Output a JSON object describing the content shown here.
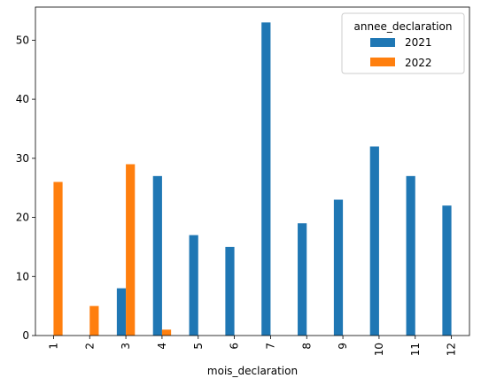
{
  "chart_data": {
    "type": "bar",
    "xlabel": "mois_declaration",
    "ylabel": "",
    "ylim": [
      0,
      55.6
    ],
    "yticks": [
      0,
      10,
      20,
      30,
      40,
      50
    ],
    "categories": [
      "1",
      "2",
      "3",
      "4",
      "5",
      "6",
      "7",
      "8",
      "9",
      "10",
      "11",
      "12"
    ],
    "legend": {
      "title": "annee_declaration",
      "placement": "top-right"
    },
    "series": [
      {
        "name": "2021",
        "color": "#1f77b4",
        "values": [
          0,
          0,
          8,
          27,
          17,
          15,
          53,
          19,
          23,
          32,
          27,
          22
        ]
      },
      {
        "name": "2022",
        "color": "#ff7f0e",
        "values": [
          26,
          5,
          29,
          1,
          0,
          0,
          0,
          0,
          0,
          0,
          0,
          0
        ]
      }
    ],
    "grid": false
  }
}
